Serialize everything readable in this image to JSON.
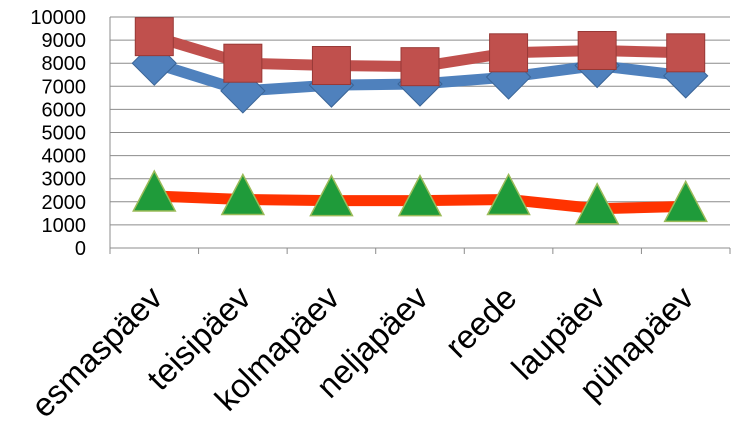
{
  "chart_data": {
    "type": "line",
    "categories": [
      "esmaspäev",
      "teisipäev",
      "kolmapäev",
      "neljapäev",
      "reede",
      "laupäev",
      "pühapäev"
    ],
    "ylim": [
      0,
      10000
    ],
    "yticks": [
      "0",
      "1000",
      "2000",
      "3000",
      "4000",
      "5000",
      "6000",
      "7000",
      "8000",
      "9000",
      "10000"
    ],
    "grid": "horizontal",
    "series": [
      {
        "color": "#4f81bd",
        "marker": "diamond",
        "values": [
          8000,
          6800,
          7050,
          7100,
          7400,
          7900,
          7450
        ]
      },
      {
        "color": "#c0504d",
        "marker": "square",
        "values": [
          9150,
          8000,
          7900,
          7850,
          8450,
          8550,
          8450
        ]
      },
      {
        "color": "#ff3300",
        "marker": "triangle",
        "marker_color": "#1f9b3a",
        "values": [
          2250,
          2100,
          2050,
          2050,
          2100,
          1700,
          1800
        ]
      }
    ]
  }
}
